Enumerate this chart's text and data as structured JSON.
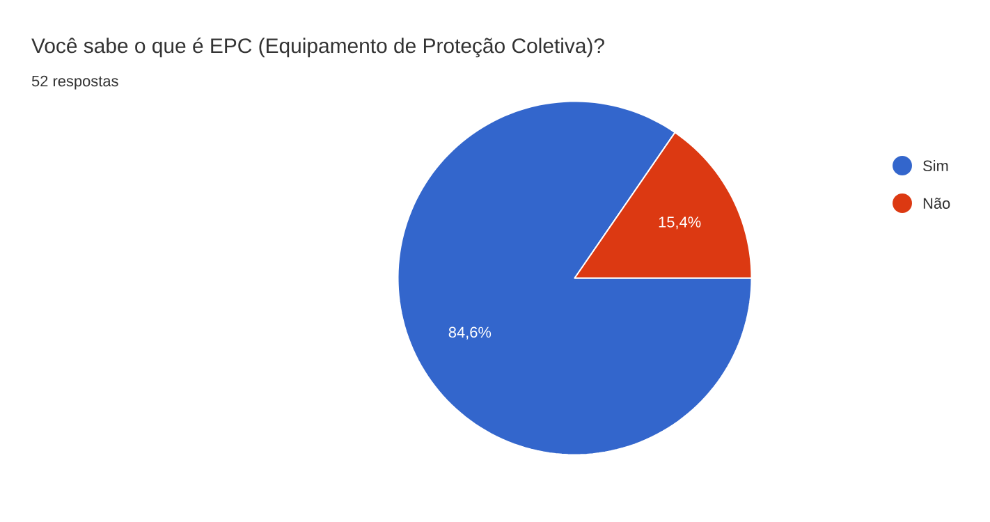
{
  "chart_data": {
    "type": "pie",
    "title": "Você sabe o que é EPC (Equipamento de Proteção Coletiva)?",
    "subtitle": "52 respostas",
    "categories": [
      "Sim",
      "Não"
    ],
    "values": [
      84.6,
      15.4
    ],
    "colors": [
      "#3366cc",
      "#dc3912"
    ],
    "value_labels": [
      "84,6%",
      "15,4%"
    ],
    "legend": "right"
  }
}
